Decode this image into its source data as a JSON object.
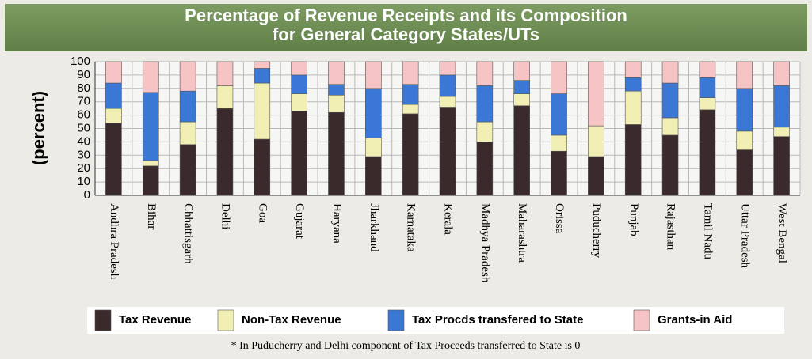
{
  "chart_data": {
    "type": "stacked_bar",
    "title": "Percentage of Revenue Receipts and its Composition for General Category States/UTs",
    "ylabel": "(percent)",
    "note": "* In Puducherry and Delhi component of Tax Proceeds transferred to State is 0",
    "categories": [
      "Andhra Pradesh",
      "Bihar",
      "Chhattisgarh",
      "Delhi",
      "Goa",
      "Gujarat",
      "Haryana",
      "Jharkhand",
      "Karnataka",
      "Kerala",
      "Madhya Pradesh",
      "Maharashtra",
      "Orissa",
      "Puducherry",
      "Punjab",
      "Rajasthan",
      "Tamil Nadu",
      "Uttar Pradesh",
      "West Bengal"
    ],
    "series": [
      {
        "name": "Tax Revenue",
        "color": "#3a2a2c",
        "values": [
          54,
          22,
          38,
          65,
          42,
          63,
          62,
          29,
          61,
          66,
          40,
          67,
          33,
          29,
          53,
          45,
          64,
          34,
          44
        ]
      },
      {
        "name": "Non-Tax Revenue",
        "color": "#f2efb4",
        "values": [
          11,
          4,
          17,
          17,
          42,
          13,
          13,
          14,
          7,
          8,
          15,
          9,
          12,
          23,
          25,
          13,
          9,
          14,
          7
        ]
      },
      {
        "name": "Tax Procds transfered to State",
        "color": "#3b78d6",
        "values": [
          19,
          51,
          23,
          0,
          11,
          14,
          8,
          37,
          15,
          16,
          27,
          10,
          31,
          0,
          10,
          26,
          15,
          32,
          31
        ]
      },
      {
        "name": "Grants-in Aid",
        "color": "#f6c4c4",
        "values": [
          16,
          23,
          22,
          18,
          5,
          10,
          17,
          20,
          17,
          10,
          18,
          14,
          24,
          48,
          12,
          16,
          12,
          20,
          18
        ]
      }
    ],
    "ylim": [
      0,
      100
    ],
    "yticks": [
      0,
      10,
      20,
      30,
      40,
      50,
      60,
      70,
      80,
      90,
      100
    ],
    "grid": true
  }
}
